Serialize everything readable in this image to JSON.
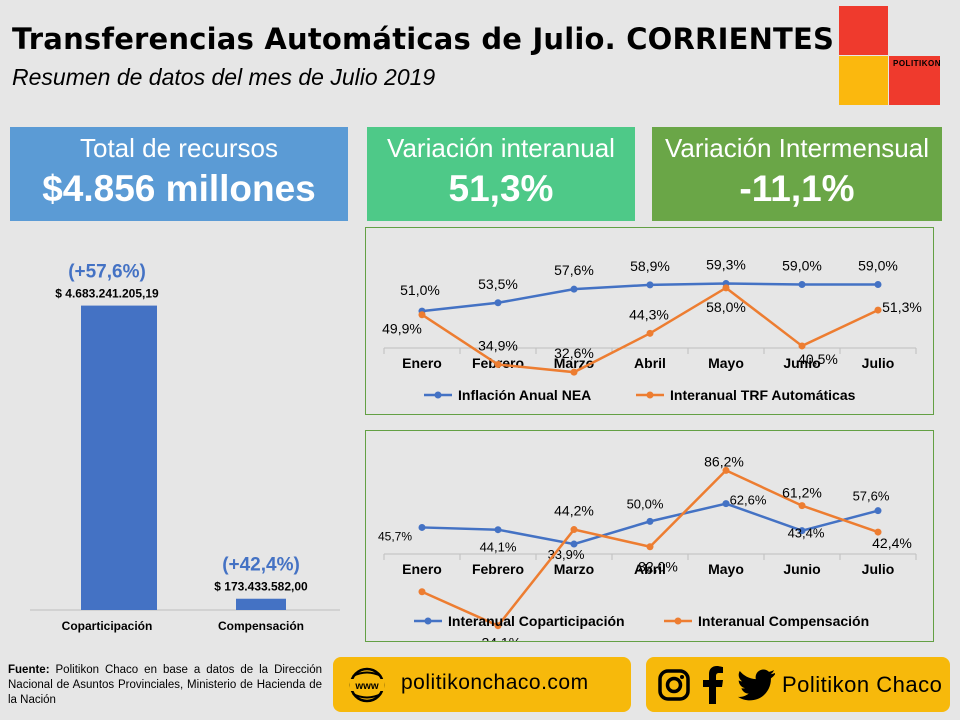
{
  "header": {
    "title": "Transferencias Automáticas de Julio. CORRIENTES",
    "subtitle": "Resumen de datos del mes de Julio 2019",
    "logo_text": "POLITIKON"
  },
  "cards": [
    {
      "label": "Total de recursos",
      "value": "$4.856 millones",
      "color": "#5b9bd5"
    },
    {
      "label": "Variación interanual",
      "value": "51,3%",
      "color": "#4ec988"
    },
    {
      "label": "Variación Intermensual",
      "value": "-11,1%",
      "color": "#6aa647"
    }
  ],
  "chart_data": [
    {
      "type": "bar",
      "categories": [
        "Coparticipación",
        "Compensación"
      ],
      "values": [
        4683241205.19,
        173433582.0
      ],
      "value_labels": [
        "$ 4.683.241.205,19",
        "$ 173.433.582,00"
      ],
      "annotations": [
        "(+57,6%)",
        "(+42,4%)"
      ],
      "color": "#4472c4",
      "ylim": [
        0,
        5000000000
      ]
    },
    {
      "type": "line",
      "categories": [
        "Enero",
        "Febrero",
        "Marzo",
        "Abril",
        "Mayo",
        "Junio",
        "Julio"
      ],
      "ylim": [
        20,
        70
      ],
      "legend": "bottom",
      "series": [
        {
          "name": "Inflación Anual NEA",
          "color": "#4472c4",
          "values": [
            51.0,
            53.5,
            57.6,
            58.9,
            59.3,
            59.0,
            59.0
          ],
          "labels": [
            "51,0%",
            "53,5%",
            "57,6%",
            "58,9%",
            "59,3%",
            "59,0%",
            "59,0%"
          ]
        },
        {
          "name": "Interanual TRF Automáticas",
          "color": "#ed7d31",
          "values": [
            49.9,
            34.9,
            32.6,
            44.3,
            58.0,
            40.5,
            51.3
          ],
          "labels": [
            "49,9%",
            "34,9%",
            "32,6%",
            "44,3%",
            "58,0%",
            "40,5%",
            "51,3%"
          ]
        }
      ]
    },
    {
      "type": "line",
      "categories": [
        "Enero",
        "Febrero",
        "Marzo",
        "Abril",
        "Mayo",
        "Junio",
        "Julio"
      ],
      "ylim": [
        -30,
        100
      ],
      "legend": "bottom",
      "series": [
        {
          "name": "Interanual Coparticipación",
          "color": "#4472c4",
          "values": [
            45.7,
            44.1,
            33.9,
            50.0,
            62.6,
            43.4,
            57.6
          ],
          "labels": [
            "45,7%",
            "44,1%",
            "33,9%",
            "50,0%",
            "62,6%",
            "43,4%",
            "57,6%"
          ]
        },
        {
          "name": "Interanual Compensación",
          "color": "#ed7d31",
          "values": [
            0.0,
            -24.1,
            44.2,
            32.0,
            86.2,
            61.2,
            42.4
          ],
          "labels": [
            "",
            "-24,1%",
            "44,2%",
            "32,0%",
            "86,2%",
            "61,2%",
            "42,4%"
          ]
        }
      ]
    }
  ],
  "footer": {
    "source_label": "Fuente:",
    "source_text": "Politikon Chaco en base a datos de la Dirección Nacional de Asuntos Provinciales, Ministerio de Hacienda de la Nación",
    "website_icon": "www",
    "website": "politikonchaco.com",
    "social_name": "Politikon Chaco",
    "icons": [
      "instagram-icon",
      "facebook-icon",
      "twitter-icon"
    ]
  }
}
